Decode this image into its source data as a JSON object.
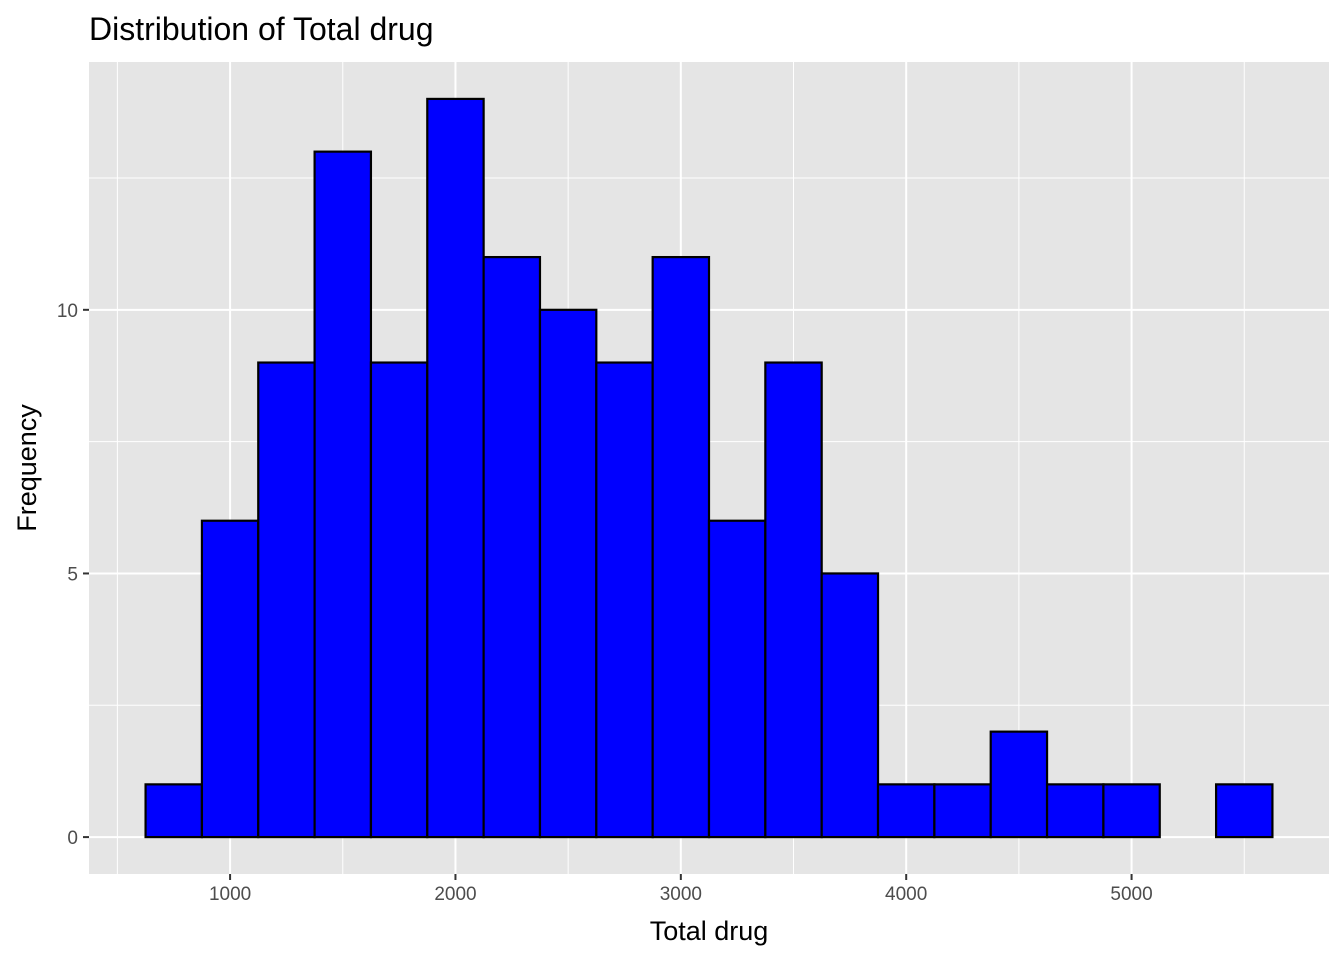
{
  "chart_data": {
    "type": "bar",
    "title": "Distribution of Total drug",
    "xlabel": "Total drug",
    "ylabel": "Frequency",
    "bins": [
      {
        "start": 625,
        "end": 875,
        "count": 1
      },
      {
        "start": 875,
        "end": 1125,
        "count": 6
      },
      {
        "start": 1125,
        "end": 1375,
        "count": 9
      },
      {
        "start": 1375,
        "end": 1625,
        "count": 13
      },
      {
        "start": 1625,
        "end": 1875,
        "count": 9
      },
      {
        "start": 1875,
        "end": 2125,
        "count": 14
      },
      {
        "start": 2125,
        "end": 2375,
        "count": 11
      },
      {
        "start": 2375,
        "end": 2625,
        "count": 10
      },
      {
        "start": 2625,
        "end": 2875,
        "count": 9
      },
      {
        "start": 2875,
        "end": 3125,
        "count": 11
      },
      {
        "start": 3125,
        "end": 3375,
        "count": 6
      },
      {
        "start": 3375,
        "end": 3625,
        "count": 9
      },
      {
        "start": 3625,
        "end": 3875,
        "count": 5
      },
      {
        "start": 3875,
        "end": 4125,
        "count": 1
      },
      {
        "start": 4125,
        "end": 4375,
        "count": 1
      },
      {
        "start": 4375,
        "end": 4625,
        "count": 2
      },
      {
        "start": 4625,
        "end": 4875,
        "count": 1
      },
      {
        "start": 4875,
        "end": 5125,
        "count": 1
      },
      {
        "start": 5125,
        "end": 5375,
        "count": 0
      },
      {
        "start": 5375,
        "end": 5625,
        "count": 1
      }
    ],
    "xticks": [
      1000,
      2000,
      3000,
      4000,
      5000
    ],
    "yticks": [
      0,
      5,
      10
    ],
    "xlim": [
      374,
      5876
    ],
    "ylim": [
      -0.7,
      14.7
    ],
    "grid": true,
    "colors": {
      "panel_background": "#e5e5e5",
      "grid": "#ffffff",
      "bar_fill": "#0000ff",
      "bar_outline": "#000000",
      "tick_label": "#4d4d4d",
      "tick_mark": "#333333"
    }
  }
}
